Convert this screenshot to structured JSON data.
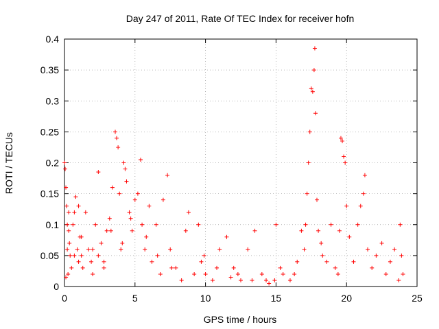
{
  "colors": {
    "series": "#ff0000",
    "grid": "#a0a0a0",
    "axis": "#000000"
  },
  "chart_data": {
    "type": "scatter",
    "title": "Day 247 of 2011, Rate Of TEC Index for receiver hofn",
    "xlabel": "GPS time / hours",
    "ylabel": "ROTI / TECUs",
    "xlim": [
      0,
      25
    ],
    "ylim": [
      0,
      0.4
    ],
    "xticks": [
      0,
      5,
      10,
      15,
      20,
      25
    ],
    "yticks": [
      0,
      0.05,
      0.1,
      0.15,
      0.2,
      0.25,
      0.3,
      0.35,
      0.4
    ],
    "grid": true,
    "marker": "plus",
    "series": [
      {
        "x": [
          0.0,
          0.05,
          0.1,
          0.1,
          0.15,
          0.2,
          0.2,
          0.25,
          0.3,
          0.35,
          0.4,
          0.5,
          0.6,
          0.7,
          0.8,
          0.9,
          1.0,
          1.0,
          1.1,
          1.2,
          1.3,
          1.5,
          1.7,
          1.9,
          2.0,
          2.2,
          2.4,
          2.4,
          2.6,
          2.8,
          3.0,
          3.2,
          3.4,
          3.6,
          3.7,
          3.8,
          3.9,
          4.0,
          4.2,
          4.3,
          4.4,
          4.6,
          4.8,
          5.0,
          5.2,
          5.4,
          5.5,
          5.7,
          6.0,
          6.2,
          6.5,
          6.8,
          7.0,
          7.3,
          7.5,
          7.9,
          8.3,
          8.8,
          9.2,
          9.5,
          9.7,
          10.0,
          10.5,
          11.0,
          11.5,
          11.8,
          12.0,
          12.5,
          13.0,
          13.5,
          14.0,
          14.5,
          14.9,
          15.0,
          15.5,
          16.0,
          16.5,
          16.8,
          17.0,
          17.1,
          17.2,
          17.3,
          17.4,
          17.5,
          17.6,
          17.7,
          17.75,
          17.8,
          17.9,
          18.0,
          18.3,
          18.6,
          18.9,
          19.2,
          19.4,
          19.5,
          19.6,
          19.7,
          19.8,
          19.9,
          20.0,
          20.2,
          20.5,
          20.8,
          21.0,
          21.2,
          21.3,
          21.5,
          21.8,
          22.1,
          22.5,
          22.8,
          23.1,
          23.4,
          23.7,
          23.8,
          23.9,
          24.0,
          0.3,
          0.7,
          1.2,
          2.0,
          2.8,
          3.3,
          4.1,
          4.7,
          5.8,
          6.6,
          7.6,
          8.6,
          9.9,
          10.8,
          12.3,
          13.3,
          14.3,
          15.3,
          16.3,
          18.2
        ],
        "y": [
          0.2,
          0.19,
          0.16,
          0.015,
          0.13,
          0.06,
          0.1,
          0.02,
          0.09,
          0.07,
          0.05,
          0.03,
          0.1,
          0.12,
          0.145,
          0.06,
          0.04,
          0.13,
          0.08,
          0.05,
          0.03,
          0.12,
          0.06,
          0.04,
          0.02,
          0.1,
          0.185,
          0.05,
          0.07,
          0.03,
          0.09,
          0.11,
          0.16,
          0.25,
          0.24,
          0.225,
          0.15,
          0.06,
          0.2,
          0.19,
          0.17,
          0.12,
          0.09,
          0.14,
          0.15,
          0.205,
          0.1,
          0.06,
          0.13,
          0.04,
          0.1,
          0.02,
          0.14,
          0.18,
          0.06,
          0.03,
          0.01,
          0.12,
          0.02,
          0.1,
          0.04,
          0.02,
          0.01,
          0.06,
          0.08,
          0.015,
          0.03,
          0.01,
          0.06,
          0.09,
          0.02,
          0.005,
          0.01,
          0.1,
          0.02,
          0.01,
          0.04,
          0.09,
          0.06,
          0.1,
          0.15,
          0.2,
          0.25,
          0.32,
          0.315,
          0.35,
          0.385,
          0.28,
          0.14,
          0.09,
          0.05,
          0.04,
          0.1,
          0.03,
          0.02,
          0.09,
          0.24,
          0.235,
          0.21,
          0.2,
          0.13,
          0.08,
          0.04,
          0.1,
          0.13,
          0.15,
          0.18,
          0.06,
          0.03,
          0.05,
          0.07,
          0.02,
          0.04,
          0.06,
          0.01,
          0.1,
          0.05,
          0.02,
          0.12,
          0.05,
          0.08,
          0.06,
          0.04,
          0.09,
          0.07,
          0.11,
          0.08,
          0.05,
          0.03,
          0.09,
          0.05,
          0.03,
          0.02,
          0.01,
          0.01,
          0.03,
          0.02,
          0.07
        ]
      }
    ]
  }
}
